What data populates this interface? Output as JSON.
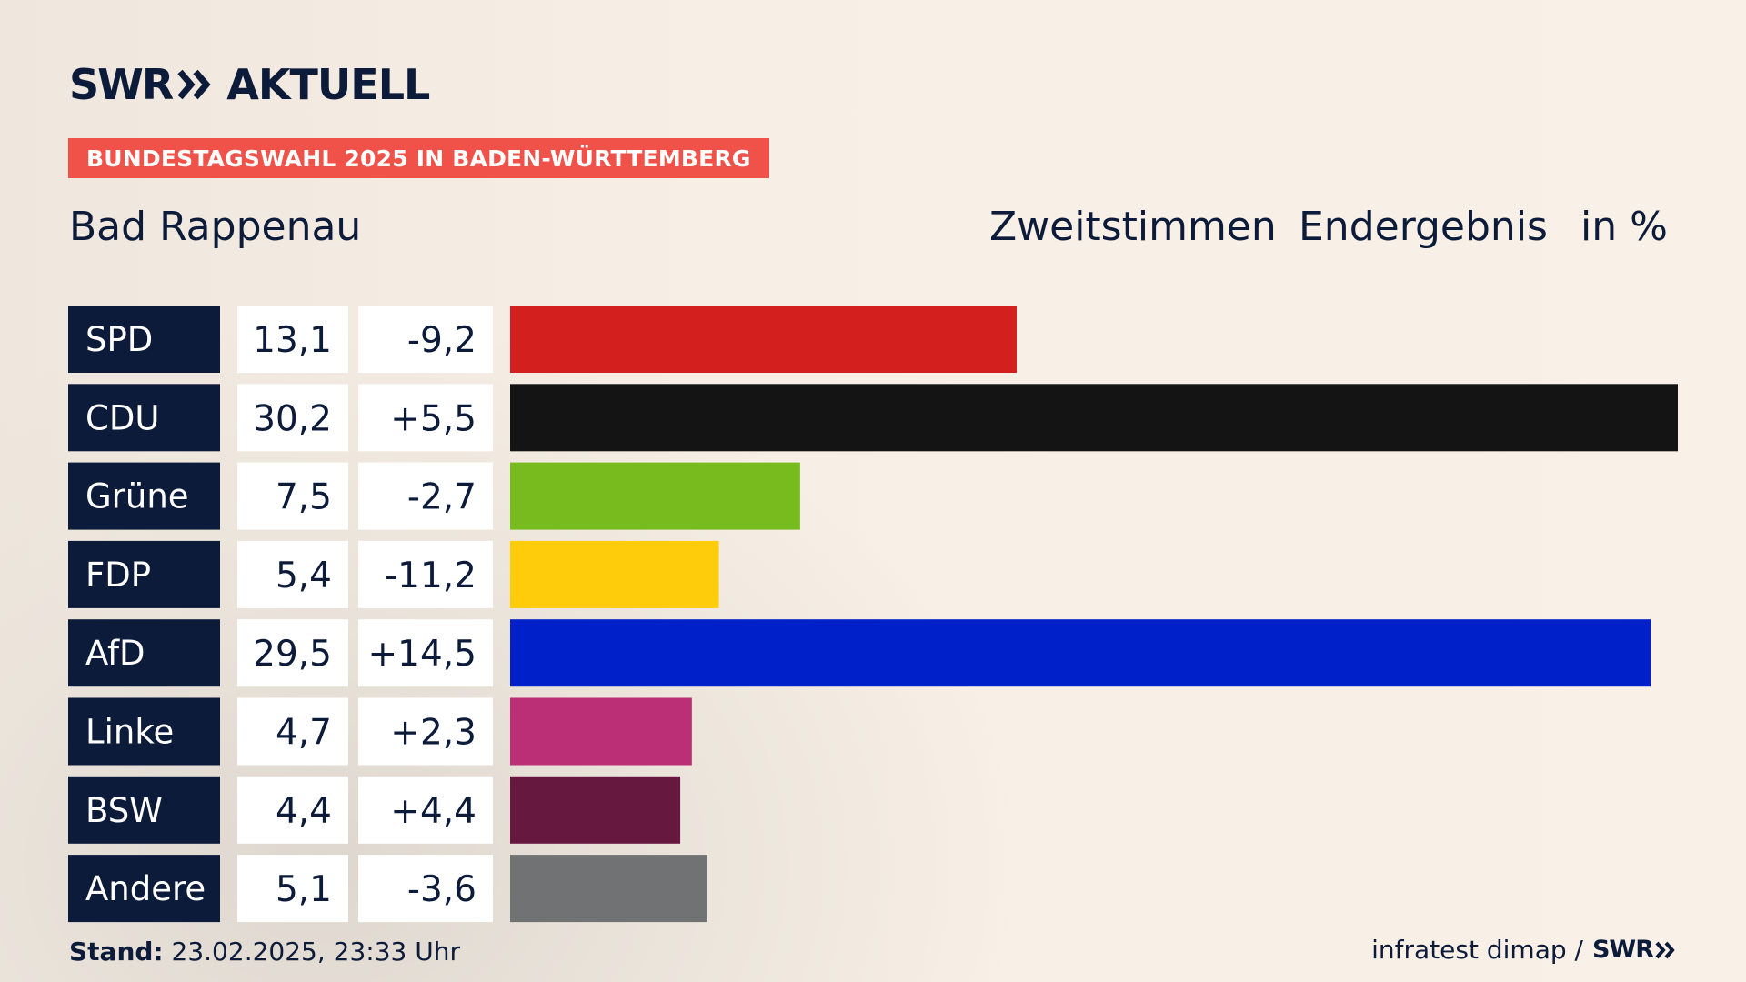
{
  "brand": {
    "logo_left": "SWR",
    "logo_right": "AKTUELL"
  },
  "banner": "BUNDESTAGSWAHL 2025 IN BADEN-WÜRTTEMBERG",
  "place": "Bad Rappenau",
  "header": {
    "vote_type": "Zweitstimmen",
    "status": "Endergebnis",
    "unit": "in %"
  },
  "footer": {
    "stand_label": "Stand:",
    "stand_value": "23.02.2025, 23:33 Uhr",
    "source": "infratest dimap /",
    "source_brand": "SWR"
  },
  "colors": {
    "label_bg": "#0d1b3a",
    "banner_bg": "#f0524a"
  },
  "chart_data": {
    "type": "bar",
    "orientation": "horizontal",
    "categories": [
      "SPD",
      "CDU",
      "Grüne",
      "FDP",
      "AfD",
      "Linke",
      "BSW",
      "Andere"
    ],
    "values": [
      13.1,
      30.2,
      7.5,
      5.4,
      29.5,
      4.7,
      4.4,
      5.1
    ],
    "value_labels": [
      "13,1",
      "30,2",
      "7,5",
      "5,4",
      "29,5",
      "4,7",
      "4,4",
      "5,1"
    ],
    "change_labels": [
      "-9,2",
      "+5,5",
      "-2,7",
      "-11,2",
      "+14,5",
      "+2,3",
      "+4,4",
      "-3,6"
    ],
    "changes": [
      -9.2,
      5.5,
      -2.7,
      -11.2,
      14.5,
      2.3,
      4.4,
      -3.6
    ],
    "bar_colors": [
      "#d41f1f",
      "#141414",
      "#78bb1e",
      "#fecc0a",
      "#0020c9",
      "#ba2f76",
      "#66183f",
      "#717273"
    ],
    "unit": "%",
    "xlim": [
      0,
      30.2
    ]
  }
}
